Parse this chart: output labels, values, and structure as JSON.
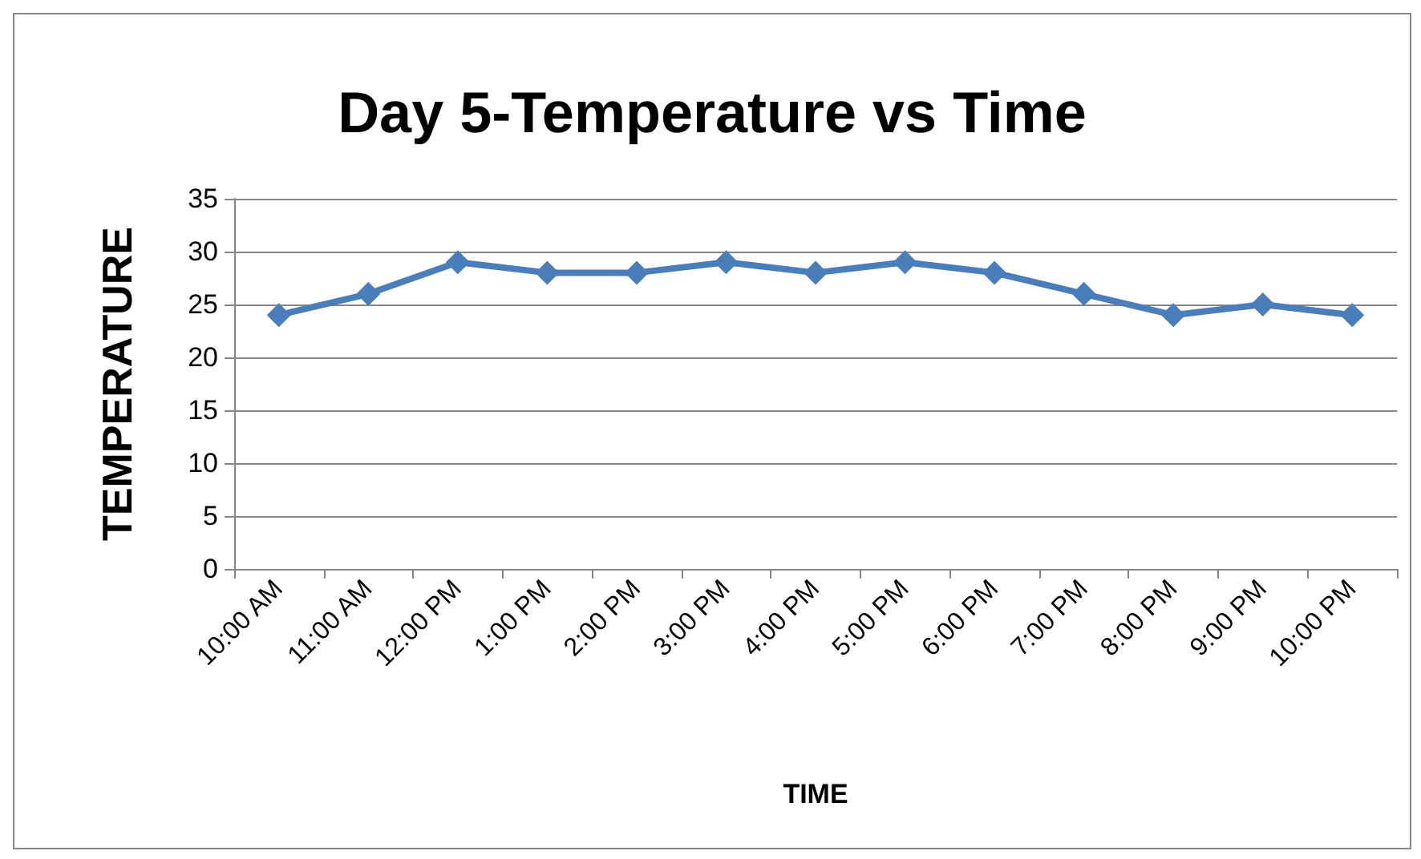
{
  "chart_data": {
    "type": "line",
    "title": "Day 5-Temperature vs Time",
    "xlabel": "TIME",
    "ylabel": "TEMPERATURE",
    "categories": [
      "10:00 AM",
      "11:00 AM",
      "12:00 PM",
      "1:00 PM",
      "2:00 PM",
      "3:00 PM",
      "4:00 PM",
      "5:00 PM",
      "6:00 PM",
      "7:00 PM",
      "8:00 PM",
      "9:00 PM",
      "10:00 PM"
    ],
    "series": [
      {
        "color": "#4a7ebb",
        "values": [
          24,
          26,
          29,
          28,
          28,
          29,
          28,
          29,
          28,
          26,
          24,
          25,
          24
        ]
      }
    ],
    "ylim": [
      0,
      35
    ],
    "yticks": [
      0,
      5,
      10,
      15,
      20,
      25,
      30,
      35
    ],
    "grid": "y",
    "marker": "diamond",
    "line_style": "solid"
  }
}
